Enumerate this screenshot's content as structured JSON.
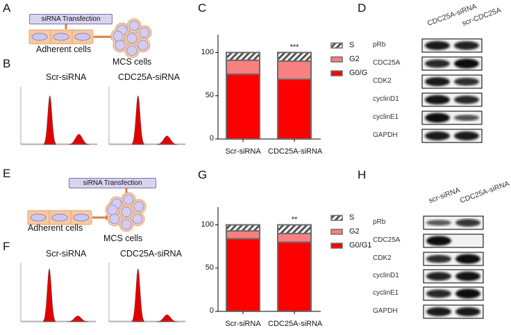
{
  "panels": {
    "A": "A",
    "B": "B",
    "C": "C",
    "D": "D",
    "E": "E",
    "F": "F",
    "G": "G",
    "H": "H"
  },
  "schema": {
    "transfection": "siRNA Transfection",
    "adherent": "Adherent cells",
    "mcs": "MCS cells"
  },
  "flow_titles": [
    "Scr-siRNA",
    "CDC25A-siRNA"
  ],
  "colors": {
    "g0g1": "#ff0000",
    "g2": "#f87f7f",
    "s_hatch": "#666666",
    "border": "#6b6b6b"
  },
  "chart_data": [
    {
      "type": "bar",
      "stacked": true,
      "panel": "C",
      "categories": [
        "Scr-siRNA",
        "CDC25A-siRNA"
      ],
      "series": [
        {
          "name": "G0/G",
          "values": [
            75,
            69
          ]
        },
        {
          "name": "G2",
          "values": [
            16,
            21
          ]
        },
        {
          "name": "S",
          "values": [
            9,
            10
          ]
        }
      ],
      "legend": [
        "S",
        "G2",
        "G0/G"
      ],
      "significance": [
        "",
        "***"
      ],
      "yticks": [
        "0",
        "50",
        "100"
      ],
      "ylim": [
        0,
        120
      ],
      "legend_position": "right"
    },
    {
      "type": "bar",
      "stacked": true,
      "panel": "G",
      "categories": [
        "Scr-siRNA",
        "CDC25A-siRNA"
      ],
      "series": [
        {
          "name": "G0/G1",
          "values": [
            84,
            80
          ]
        },
        {
          "name": "G2",
          "values": [
            9,
            10
          ]
        },
        {
          "name": "S",
          "values": [
            7,
            10
          ]
        }
      ],
      "legend": [
        "S",
        "G2",
        "G0/G1"
      ],
      "significance": [
        "",
        "**"
      ],
      "yticks": [
        "0",
        "50",
        "100"
      ],
      "ylim": [
        0,
        120
      ],
      "legend_position": "right"
    }
  ],
  "blot_D": {
    "columns": [
      "CDC25A-siRNA",
      "scr-CDC25A"
    ],
    "rows": [
      {
        "label": "pRb",
        "bands": [
          0.9,
          0.85
        ]
      },
      {
        "label": "CDC25A",
        "bands": [
          0.8,
          1.0
        ]
      },
      {
        "label": "CDK2",
        "bands": [
          0.9,
          0.75
        ]
      },
      {
        "label": "cyclinD1",
        "bands": [
          0.95,
          0.8
        ]
      },
      {
        "label": "cyclinE1",
        "bands": [
          1.0,
          0.5
        ]
      },
      {
        "label": "GAPDH",
        "bands": [
          0.9,
          0.9
        ]
      }
    ]
  },
  "blot_H": {
    "columns": [
      "scr-siRNA",
      "CDC25A-siRNA"
    ],
    "rows": [
      {
        "label": "pRb",
        "bands": [
          0.45,
          0.7
        ]
      },
      {
        "label": "CDC25A",
        "bands": [
          1.0,
          0.0
        ]
      },
      {
        "label": "CDK2",
        "bands": [
          0.75,
          1.0
        ]
      },
      {
        "label": "cyclinD1",
        "bands": [
          0.85,
          0.95
        ]
      },
      {
        "label": "cyclinE1",
        "bands": [
          0.8,
          1.0
        ]
      },
      {
        "label": "GAPDH",
        "bands": [
          0.9,
          0.9
        ]
      }
    ]
  }
}
